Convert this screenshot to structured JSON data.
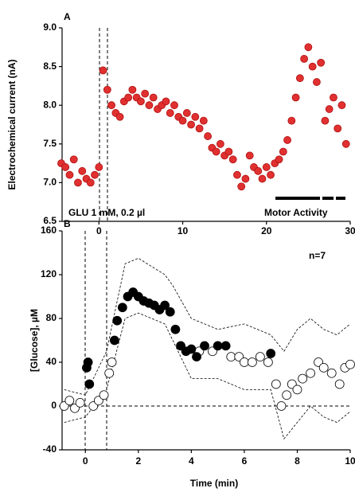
{
  "chart_data": [
    {
      "type": "scatter",
      "ylabel": "Electrochemical current (nA)",
      "annotations": [
        "A",
        "GLU 1 mM, 0.2  µl",
        "Motor Activity"
      ],
      "xlim": [
        -4.4,
        30
      ],
      "ylim": [
        6.5,
        9.0
      ],
      "xticks": [
        0,
        10,
        20,
        30
      ],
      "yticks": [
        {
          "value": 6.5,
          "label": "6.5"
        },
        {
          "value": 7.0,
          "label": "7.0"
        },
        {
          "value": 7.5,
          "label": "7.5"
        },
        {
          "value": 8.0,
          "label": "8.0"
        },
        {
          "value": 8.5,
          "label": "8.5"
        },
        {
          "value": 9.0,
          "label": "9.0"
        }
      ],
      "series": [
        {
          "color": "#b01010",
          "fill": "#e03030",
          "marker": "circle",
          "x": [
            -4.5,
            -4,
            -3.5,
            -3,
            -2.5,
            -2,
            -1.5,
            -1,
            -0.5,
            0,
            0.5,
            1,
            1.5,
            2,
            2.5,
            3,
            3.5,
            4,
            4.5,
            5,
            5.5,
            6,
            6.5,
            7,
            7.5,
            8,
            8.5,
            9,
            9.5,
            10,
            10.5,
            11,
            11.5,
            12,
            12.5,
            13,
            13.5,
            14,
            14.5,
            15,
            15.5,
            16,
            16.5,
            17,
            17.5,
            18,
            18.5,
            19,
            19.5,
            20,
            20.5,
            21,
            21.5,
            22,
            22.5,
            23,
            23.5,
            24,
            24.5,
            25,
            25.5,
            26,
            26.5,
            27,
            27.5,
            28,
            28.5,
            29,
            29.5
          ],
          "values": [
            7.25,
            7.2,
            7.1,
            7.3,
            7.0,
            7.15,
            7.05,
            7.0,
            7.1,
            7.2,
            8.45,
            8.2,
            8.0,
            7.9,
            7.85,
            8.05,
            8.1,
            8.2,
            8.1,
            8.05,
            8.15,
            8.0,
            8.1,
            7.95,
            8.0,
            8.05,
            7.9,
            8.0,
            7.85,
            7.8,
            7.9,
            7.75,
            7.85,
            7.7,
            7.8,
            7.6,
            7.45,
            7.4,
            7.5,
            7.35,
            7.4,
            7.3,
            7.1,
            6.95,
            7.05,
            7.35,
            7.2,
            7.15,
            7.05,
            7.2,
            7.1,
            7.25,
            7.3,
            7.4,
            7.55,
            7.8,
            8.1,
            8.35,
            8.6,
            8.75,
            8.5,
            8.3,
            8.55,
            7.8,
            7.95,
            8.1,
            7.7,
            8.0,
            7.5
          ]
        }
      ]
    },
    {
      "type": "scatter",
      "ylabel": "[Glucose], µM",
      "xlabel": "Time (min)",
      "annotations": [
        "B",
        "n=7"
      ],
      "xlim": [
        -0.88,
        10
      ],
      "ylim": [
        -40,
        160
      ],
      "xticks": [
        0,
        2,
        4,
        6,
        8,
        10
      ],
      "yticks": [
        -40,
        0,
        40,
        80,
        120,
        160
      ],
      "series": [
        {
          "type": "line",
          "color": "#000",
          "style": "dashed",
          "x": [
            -0.8,
            0,
            0.8,
            1.5,
            2,
            3,
            3.3,
            4,
            5,
            6,
            7,
            7.5,
            8,
            8.5,
            9,
            9.5,
            10
          ],
          "values": [
            15,
            10,
            50,
            130,
            135,
            120,
            110,
            80,
            70,
            75,
            65,
            50,
            70,
            80,
            70,
            65,
            75
          ]
        },
        {
          "type": "line",
          "color": "#000",
          "style": "dashed",
          "x": [
            -0.8,
            0,
            0.8,
            1.5,
            2,
            3,
            3.3,
            4,
            5,
            6,
            7,
            7.5,
            8,
            8.5,
            9,
            9.5,
            10
          ],
          "values": [
            -15,
            -10,
            15,
            80,
            85,
            75,
            60,
            25,
            25,
            15,
            15,
            -30,
            -15,
            0,
            -10,
            -15,
            -5
          ]
        },
        {
          "color": "#000",
          "fill": "#fff",
          "marker": "circle",
          "x": [
            -0.8,
            -0.6,
            -0.4,
            -0.2,
            0.3,
            0.5,
            0.7,
            0.9,
            1,
            4.3,
            4.8,
            5.5,
            5.8,
            6,
            6.3,
            6.6,
            6.9,
            7.2,
            7.4,
            7.6,
            7.8,
            8,
            8.2,
            8.5,
            8.8,
            9,
            9.3,
            9.6,
            9.8,
            10
          ],
          "values": [
            0,
            5,
            -2,
            3,
            0,
            5,
            10,
            30,
            40,
            50,
            50,
            45,
            45,
            40,
            40,
            45,
            40,
            20,
            0,
            10,
            20,
            15,
            25,
            30,
            40,
            35,
            30,
            20,
            35,
            38
          ]
        },
        {
          "color": "#000",
          "fill": "#000",
          "marker": "circle",
          "x": [
            0.05,
            0.1,
            0.15,
            1.1,
            1.2,
            1.4,
            1.6,
            1.8,
            2,
            2.2,
            2.4,
            2.6,
            2.8,
            3,
            3.2,
            3.4,
            3.6,
            3.8,
            4,
            4.2,
            4.5,
            5,
            5.3,
            7
          ],
          "values": [
            35,
            40,
            20,
            60,
            78,
            90,
            100,
            104,
            100,
            96,
            94,
            92,
            88,
            92,
            86,
            70,
            55,
            50,
            52,
            45,
            55,
            55,
            55,
            48
          ]
        }
      ]
    }
  ]
}
